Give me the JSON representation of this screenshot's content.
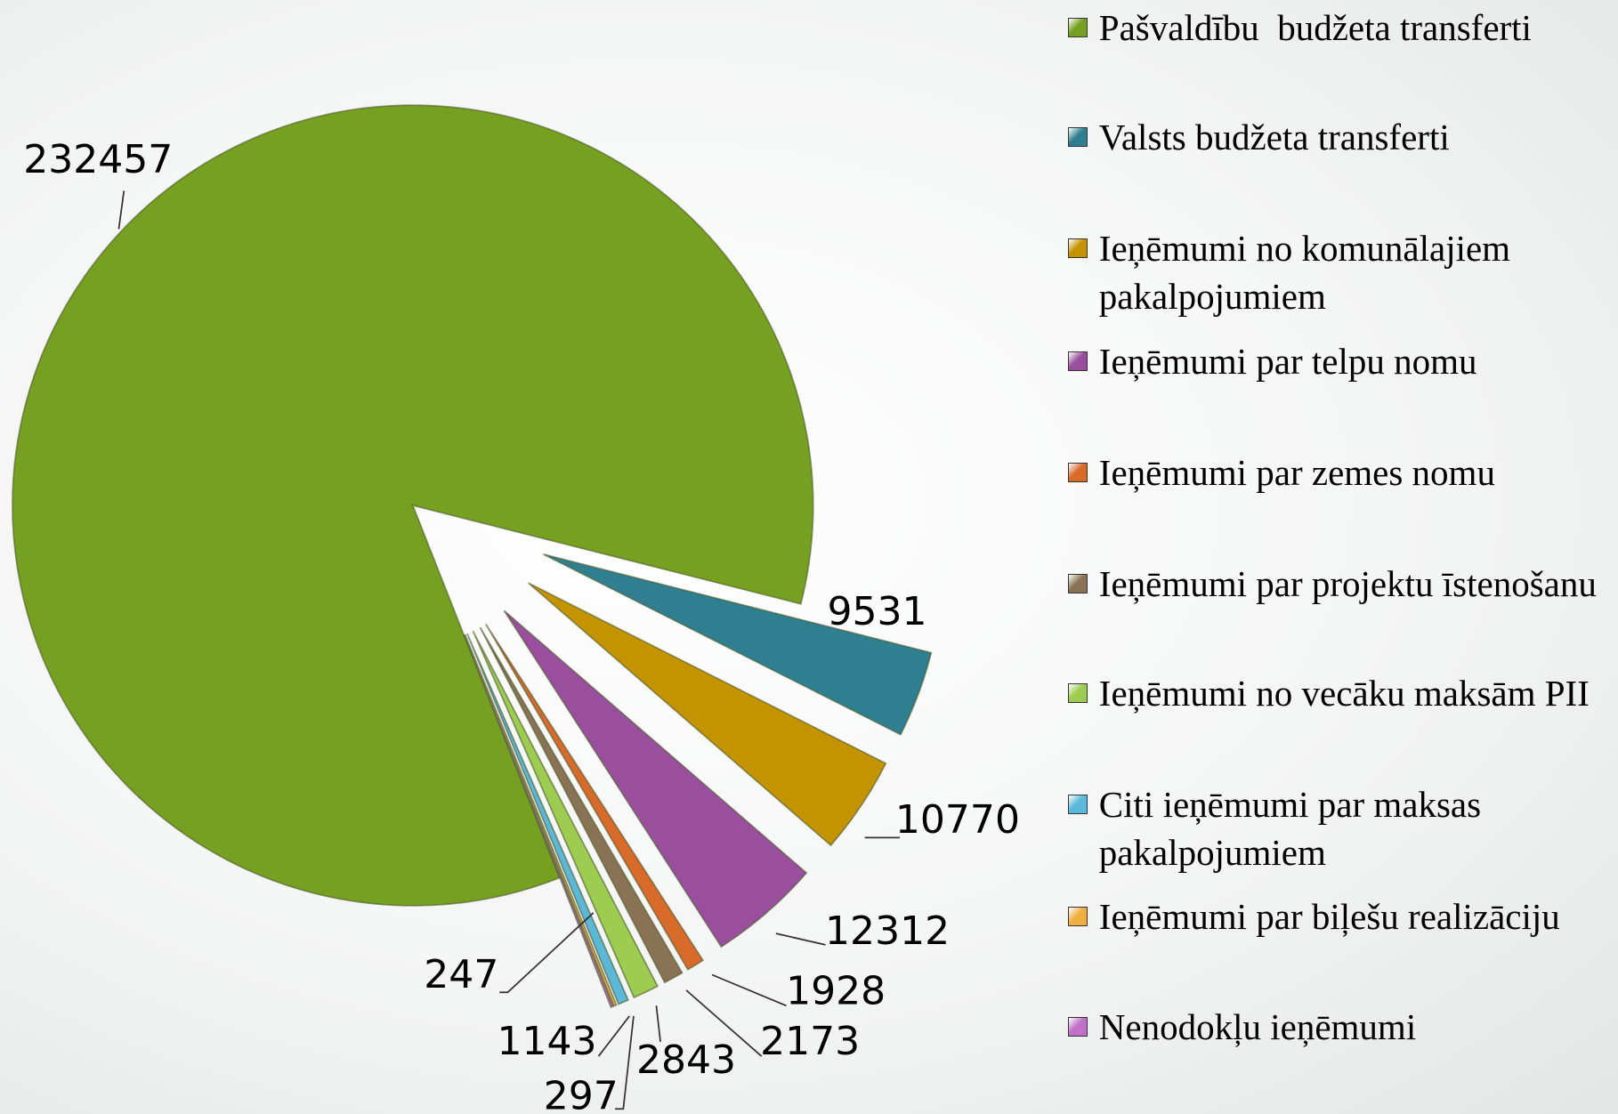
{
  "chart_data": {
    "type": "pie",
    "categories": [
      "Pašvaldību  budžeta transferti",
      "Valsts budžeta transferti",
      "Ieņēmumi no komunālajiem pakalpojumiem",
      "Ieņēmumi par telpu nomu",
      "Ieņēmumi par zemes nomu",
      "Ieņēmumi par projektu īstenošanu",
      "Ieņēmumi no vecāku maksām PII",
      "Citi ieņēmumi par maksas pakalpojumiem",
      "Ieņēmumi par biļešu realizāciju",
      "Nenodokļu ieņēmumi"
    ],
    "values": [
      232457,
      9531,
      10770,
      12312,
      1928,
      2173,
      2843,
      1143,
      297,
      247
    ],
    "colors": [
      "#76a020",
      "#2e7f8f",
      "#c49400",
      "#9a4f9e",
      "#d86a2a",
      "#8a7355",
      "#9ccc50",
      "#5ab8d8",
      "#f0b040",
      "#c070c8"
    ],
    "legend": "right"
  }
}
